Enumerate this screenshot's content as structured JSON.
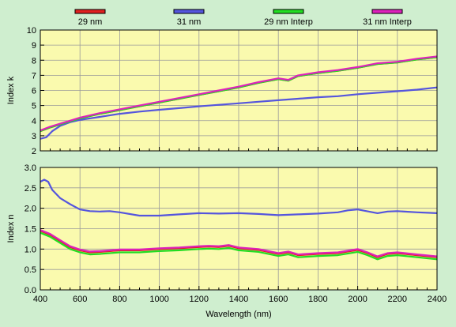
{
  "chart_data": [
    {
      "type": "line",
      "ylabel": "Index k",
      "xlim": [
        400,
        2400
      ],
      "ylim": [
        2,
        10
      ],
      "yticks": [
        2,
        3,
        4,
        5,
        6,
        7,
        8,
        9,
        10
      ],
      "grid": true,
      "series": [
        {
          "name": "29 nm",
          "color": "#e02020",
          "x": [
            400,
            450,
            500,
            550,
            600,
            700,
            800,
            900,
            1000,
            1100,
            1200,
            1300,
            1400,
            1500,
            1600,
            1650,
            1700,
            1800,
            1900,
            2000,
            2100,
            2200,
            2300,
            2400
          ],
          "y": [
            3.3,
            3.55,
            3.75,
            3.95,
            4.15,
            4.45,
            4.7,
            4.95,
            5.2,
            5.45,
            5.7,
            5.95,
            6.2,
            6.5,
            6.75,
            6.65,
            6.95,
            7.15,
            7.3,
            7.5,
            7.75,
            7.85,
            8.05,
            8.2
          ]
        },
        {
          "name": "31 nm",
          "color": "#5555dd",
          "x": [
            400,
            430,
            460,
            500,
            550,
            600,
            700,
            800,
            900,
            1000,
            1100,
            1200,
            1300,
            1400,
            1500,
            1600,
            1700,
            1800,
            1900,
            2000,
            2100,
            2200,
            2300,
            2400
          ],
          "y": [
            2.8,
            2.9,
            3.3,
            3.65,
            3.9,
            4.05,
            4.25,
            4.45,
            4.6,
            4.72,
            4.83,
            4.95,
            5.05,
            5.15,
            5.25,
            5.35,
            5.45,
            5.55,
            5.62,
            5.75,
            5.85,
            5.95,
            6.05,
            6.2
          ]
        },
        {
          "name": "29 nm Interp",
          "color": "#22dd22",
          "x": [
            400,
            450,
            500,
            550,
            600,
            700,
            800,
            900,
            1000,
            1100,
            1200,
            1300,
            1400,
            1500,
            1600,
            1650,
            1700,
            1800,
            1900,
            2000,
            2100,
            2200,
            2300,
            2400
          ],
          "y": [
            3.3,
            3.55,
            3.75,
            3.95,
            4.15,
            4.45,
            4.7,
            4.95,
            5.2,
            5.45,
            5.7,
            5.95,
            6.2,
            6.5,
            6.75,
            6.65,
            6.95,
            7.15,
            7.3,
            7.5,
            7.75,
            7.85,
            8.05,
            8.2
          ]
        },
        {
          "name": "31 nm Interp",
          "color": "#dd22bb",
          "x": [
            400,
            450,
            500,
            550,
            600,
            700,
            800,
            900,
            1000,
            1100,
            1200,
            1300,
            1400,
            1500,
            1600,
            1650,
            1700,
            1800,
            1900,
            2000,
            2100,
            2200,
            2300,
            2400
          ],
          "y": [
            3.35,
            3.6,
            3.8,
            4.0,
            4.2,
            4.5,
            4.75,
            5.0,
            5.25,
            5.5,
            5.75,
            6.0,
            6.25,
            6.55,
            6.8,
            6.7,
            7.0,
            7.2,
            7.35,
            7.55,
            7.8,
            7.9,
            8.1,
            8.25
          ]
        }
      ]
    },
    {
      "type": "line",
      "xlabel": "Wavelength (nm)",
      "ylabel": "Index n",
      "xlim": [
        400,
        2400
      ],
      "ylim": [
        0.0,
        3.0
      ],
      "xticks": [
        400,
        600,
        800,
        1000,
        1200,
        1400,
        1600,
        1800,
        2000,
        2200,
        2400
      ],
      "yticks": [
        "0.0",
        "0.5",
        "1.0",
        "1.5",
        "2.0",
        "2.5",
        "3.0"
      ],
      "grid": true,
      "series": [
        {
          "name": "29 nm",
          "color": "#e02020",
          "x": [
            400,
            450,
            500,
            550,
            600,
            650,
            700,
            800,
            900,
            1000,
            1100,
            1200,
            1250,
            1300,
            1350,
            1400,
            1500,
            1600,
            1650,
            1700,
            1800,
            1900,
            2000,
            2050,
            2100,
            2150,
            2200,
            2300,
            2400
          ],
          "y": [
            1.45,
            1.35,
            1.2,
            1.05,
            0.97,
            0.92,
            0.93,
            0.97,
            0.97,
            1.0,
            1.02,
            1.05,
            1.06,
            1.05,
            1.08,
            1.02,
            0.98,
            0.88,
            0.92,
            0.85,
            0.88,
            0.9,
            0.98,
            0.9,
            0.8,
            0.88,
            0.9,
            0.85,
            0.8
          ]
        },
        {
          "name": "31 nm",
          "color": "#5555dd",
          "x": [
            400,
            420,
            440,
            460,
            500,
            550,
            600,
            650,
            700,
            750,
            800,
            900,
            1000,
            1100,
            1200,
            1300,
            1400,
            1500,
            1600,
            1700,
            1800,
            1900,
            1950,
            2000,
            2100,
            2150,
            2200,
            2300,
            2400
          ],
          "y": [
            2.65,
            2.7,
            2.65,
            2.45,
            2.25,
            2.1,
            1.97,
            1.93,
            1.92,
            1.93,
            1.9,
            1.82,
            1.82,
            1.85,
            1.88,
            1.87,
            1.88,
            1.86,
            1.83,
            1.85,
            1.87,
            1.9,
            1.95,
            1.97,
            1.88,
            1.92,
            1.93,
            1.9,
            1.88
          ]
        },
        {
          "name": "29 nm Interp",
          "color": "#22dd22",
          "x": [
            400,
            450,
            500,
            550,
            600,
            650,
            700,
            800,
            900,
            1000,
            1100,
            1200,
            1250,
            1300,
            1350,
            1400,
            1500,
            1600,
            1650,
            1700,
            1800,
            1900,
            2000,
            2050,
            2100,
            2150,
            2200,
            2300,
            2400
          ],
          "y": [
            1.4,
            1.3,
            1.15,
            1.0,
            0.92,
            0.87,
            0.88,
            0.92,
            0.92,
            0.95,
            0.97,
            1.0,
            1.01,
            1.0,
            1.03,
            0.97,
            0.93,
            0.83,
            0.87,
            0.8,
            0.83,
            0.85,
            0.93,
            0.85,
            0.75,
            0.83,
            0.85,
            0.8,
            0.75
          ]
        },
        {
          "name": "31 nm Interp",
          "color": "#dd22bb",
          "x": [
            400,
            450,
            500,
            550,
            600,
            650,
            700,
            800,
            900,
            1000,
            1100,
            1200,
            1250,
            1300,
            1350,
            1400,
            1500,
            1600,
            1650,
            1700,
            1800,
            1900,
            2000,
            2050,
            2100,
            2150,
            2200,
            2300,
            2400
          ],
          "y": [
            1.47,
            1.37,
            1.22,
            1.07,
            0.99,
            0.94,
            0.95,
            0.99,
            0.99,
            1.02,
            1.04,
            1.07,
            1.08,
            1.07,
            1.1,
            1.04,
            1.0,
            0.9,
            0.94,
            0.87,
            0.9,
            0.92,
            1.0,
            0.92,
            0.82,
            0.9,
            0.92,
            0.87,
            0.82
          ]
        }
      ]
    }
  ]
}
